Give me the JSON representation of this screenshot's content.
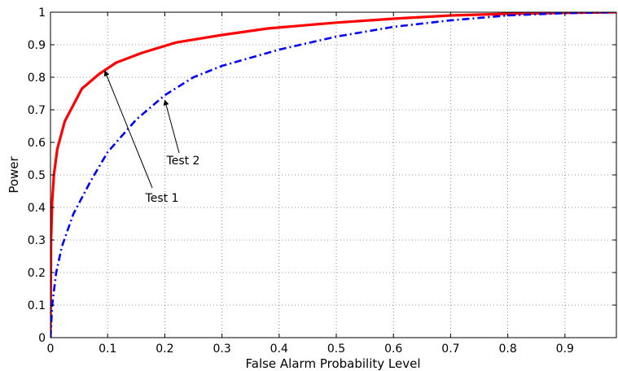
{
  "chart_data": {
    "type": "line",
    "xlabel": "False Alarm Probability Level",
    "ylabel": "Power",
    "xlim": [
      0,
      0.99
    ],
    "ylim": [
      0,
      1
    ],
    "xticks": [
      0,
      0.1,
      0.2,
      0.3,
      0.4,
      0.5,
      0.6,
      0.7,
      0.8,
      0.9
    ],
    "xtick_labels": [
      "0",
      "0.1",
      "0.2",
      "0.3",
      "0.4",
      "0.5",
      "0.6",
      "0.7",
      "0.8",
      "0.9"
    ],
    "yticks": [
      0,
      0.1,
      0.2,
      0.3,
      0.4,
      0.5,
      0.6,
      0.7,
      0.8,
      0.9,
      1
    ],
    "ytick_labels": [
      "0",
      "0.1",
      "0.2",
      "0.3",
      "0.4",
      "0.5",
      "0.6",
      "0.7",
      "0.8",
      "0.9",
      "1"
    ],
    "grid": true,
    "series": [
      {
        "color": "#ff0000",
        "line_style": "solid",
        "x": [
          0,
          0.001,
          0.003,
          0.006,
          0.012,
          0.025,
          0.055,
          0.085,
          0.115,
          0.16,
          0.22,
          0.3,
          0.38,
          0.5,
          0.6,
          0.7,
          0.8,
          0.9,
          0.99
        ],
        "y": [
          0,
          0.3,
          0.42,
          0.5,
          0.58,
          0.665,
          0.765,
          0.81,
          0.845,
          0.875,
          0.907,
          0.93,
          0.95,
          0.968,
          0.98,
          0.99,
          0.995,
          0.998,
          1.0
        ]
      },
      {
        "color": "#0000ff",
        "line_style": "dash-dot",
        "x": [
          0,
          0.003,
          0.01,
          0.02,
          0.04,
          0.07,
          0.1,
          0.15,
          0.2,
          0.25,
          0.3,
          0.4,
          0.5,
          0.6,
          0.7,
          0.8,
          0.9,
          0.99
        ],
        "y": [
          0,
          0.1,
          0.2,
          0.28,
          0.38,
          0.48,
          0.57,
          0.67,
          0.745,
          0.8,
          0.835,
          0.885,
          0.925,
          0.955,
          0.975,
          0.99,
          0.997,
          1.0
        ]
      }
    ],
    "annotations": [
      {
        "text": "Test 1",
        "target": [
          0.095,
          0.82
        ]
      },
      {
        "text": "Test 2",
        "target": [
          0.2,
          0.73
        ]
      }
    ]
  }
}
